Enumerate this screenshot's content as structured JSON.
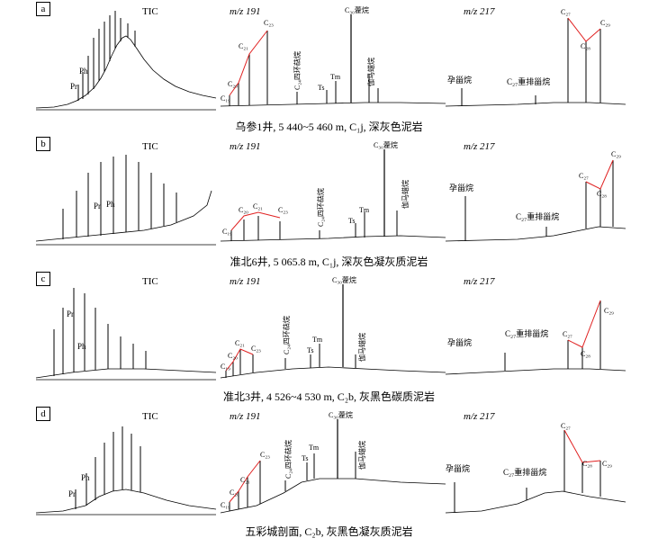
{
  "header_labels": {
    "tic": "TIC",
    "mz191": "m/z 191",
    "mz217": "m/z 217"
  },
  "colors": {
    "trace": "#000000",
    "connector": "#e02020"
  },
  "panels": [
    {
      "letter": "a",
      "caption": "乌参1井, 5 440~5 460 m, C₁j, 深灰色泥岩",
      "tic_labels": [
        "Pr",
        "Ph"
      ],
      "mz191_labels": [
        "C₁₉",
        "C₂₀",
        "C₂₁",
        "C₂₃",
        "C₂₄四环萜烷",
        "Ts",
        "Tm",
        "C₃₀藿烷",
        "伽马蜡烷"
      ],
      "mz217_labels": [
        "孕甾烷",
        "C₂₇重排甾烷",
        "C₂₇",
        "C₂₈",
        "C₂₉"
      ]
    },
    {
      "letter": "b",
      "caption": "准北6井, 5 065.8 m, C₁j, 深灰色凝灰质泥岩",
      "tic_labels": [
        "Pr",
        "Ph"
      ],
      "mz191_labels": [
        "C₁₉",
        "C₂₀",
        "C₂₁",
        "C₂₃",
        "C₂₄四环萜烷",
        "Ts",
        "Tm",
        "C₃₀藿烷",
        "伽马蜡烷"
      ],
      "mz217_labels": [
        "孕甾烷",
        "C₂₇重排甾烷",
        "C₂₇",
        "C₂₈",
        "C₂₉"
      ]
    },
    {
      "letter": "c",
      "caption": "准北3井, 4 526~4 530 m, C₂b, 灰黑色碳质泥岩",
      "tic_labels": [
        "Pr",
        "Ph"
      ],
      "mz191_labels": [
        "C₁₉",
        "C₂₀",
        "C₂₁",
        "C₂₃",
        "C₂₄四环萜烷",
        "Ts",
        "Tm",
        "C₃₀藿烷",
        "伽马蜡烷"
      ],
      "mz217_labels": [
        "孕甾烷",
        "C₂₇重排甾烷",
        "C₂₇",
        "C₂₈",
        "C₂₉"
      ]
    },
    {
      "letter": "d",
      "caption": "五彩城剖面, C₂b, 灰黑色凝灰质泥岩",
      "tic_labels": [
        "Pr",
        "Ph"
      ],
      "mz191_labels": [
        "C₁₉",
        "C₂₀",
        "C₂₁",
        "C₂₃",
        "C₂₄四环萜烷",
        "Ts",
        "Tm",
        "C₃₀藿烷",
        "伽马蜡烷"
      ],
      "mz217_labels": [
        "孕甾烷",
        "C₂₇重排甾烷",
        "C₂₇",
        "C₂₈",
        "C₂₉"
      ]
    }
  ]
}
